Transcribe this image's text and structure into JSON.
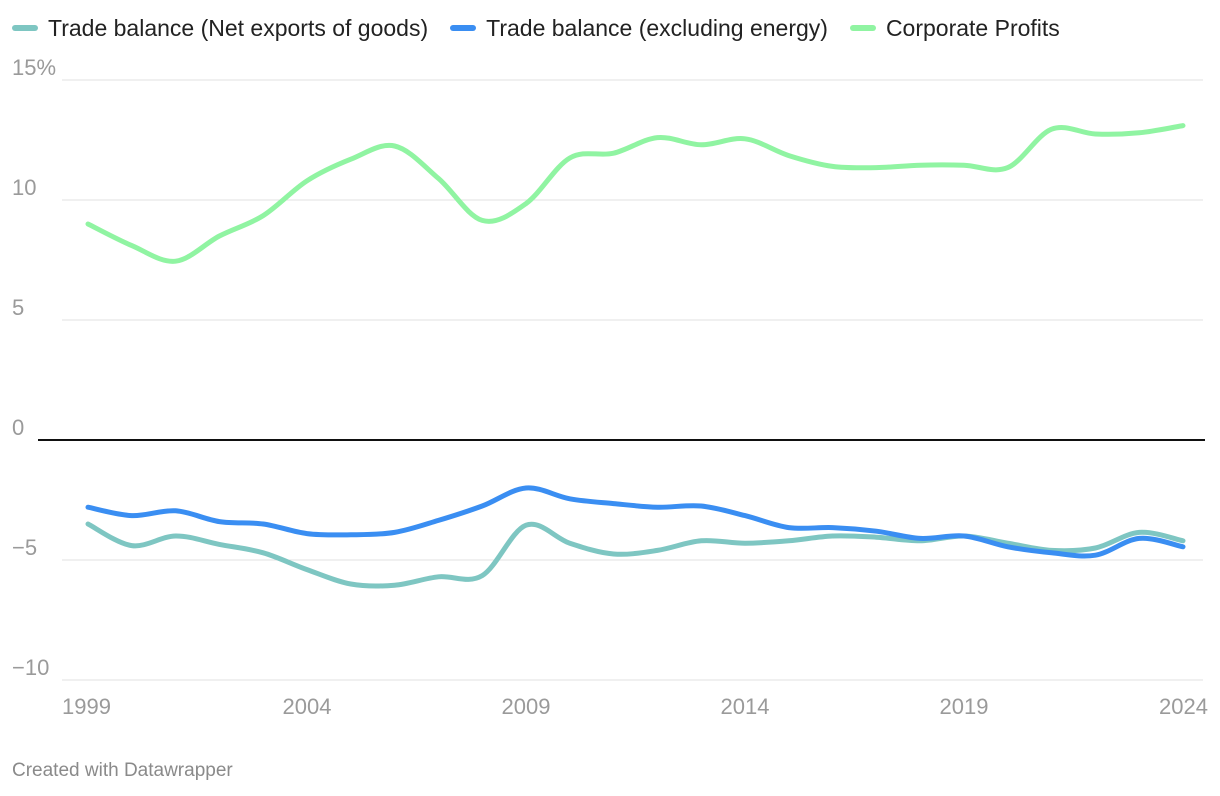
{
  "chart_data": {
    "type": "line",
    "title": "",
    "xlabel": "",
    "ylabel": "",
    "xlim": [
      1999,
      2024
    ],
    "ylim": [
      -10,
      15
    ],
    "x_ticks": [
      "1999",
      "2004",
      "2009",
      "2014",
      "2019",
      "2024"
    ],
    "y_ticks": [
      "15%",
      "10",
      "5",
      "0",
      "−5",
      "−10"
    ],
    "legend_position": "top-left",
    "grid": true,
    "zero_line": true,
    "x": [
      1999,
      2000,
      2001,
      2002,
      2003,
      2004,
      2005,
      2006,
      2007,
      2008,
      2009,
      2010,
      2011,
      2012,
      2013,
      2014,
      2015,
      2016,
      2017,
      2018,
      2019,
      2020,
      2021,
      2022,
      2023,
      2024
    ],
    "series": [
      {
        "name": "Trade balance (Net exports of goods)",
        "color": "#7ec6c2",
        "values": [
          -3.5,
          -4.4,
          -4.0,
          -4.35,
          -4.7,
          -5.4,
          -6.0,
          -6.05,
          -5.7,
          -5.65,
          -3.55,
          -4.3,
          -4.75,
          -4.6,
          -4.2,
          -4.3,
          -4.2,
          -4.0,
          -4.05,
          -4.2,
          -4.0,
          -4.3,
          -4.6,
          -4.5,
          -3.85,
          -4.2
        ]
      },
      {
        "name": "Trade balance (excluding energy)",
        "color": "#3a8ef2",
        "values": [
          -2.8,
          -3.15,
          -2.95,
          -3.4,
          -3.5,
          -3.9,
          -3.95,
          -3.85,
          -3.35,
          -2.75,
          -2.0,
          -2.45,
          -2.65,
          -2.8,
          -2.75,
          -3.15,
          -3.65,
          -3.65,
          -3.8,
          -4.1,
          -4.0,
          -4.45,
          -4.7,
          -4.8,
          -4.1,
          -4.45
        ]
      },
      {
        "name": "Corporate Profits",
        "color": "#90f4a2",
        "values": [
          9.0,
          8.1,
          7.45,
          8.5,
          9.35,
          10.8,
          11.7,
          12.25,
          10.9,
          9.15,
          9.85,
          11.75,
          11.95,
          12.6,
          12.3,
          12.55,
          11.85,
          11.4,
          11.35,
          11.45,
          11.45,
          11.35,
          12.95,
          12.75,
          12.8,
          13.1
        ]
      }
    ]
  },
  "footer": {
    "credit": "Created with Datawrapper"
  }
}
